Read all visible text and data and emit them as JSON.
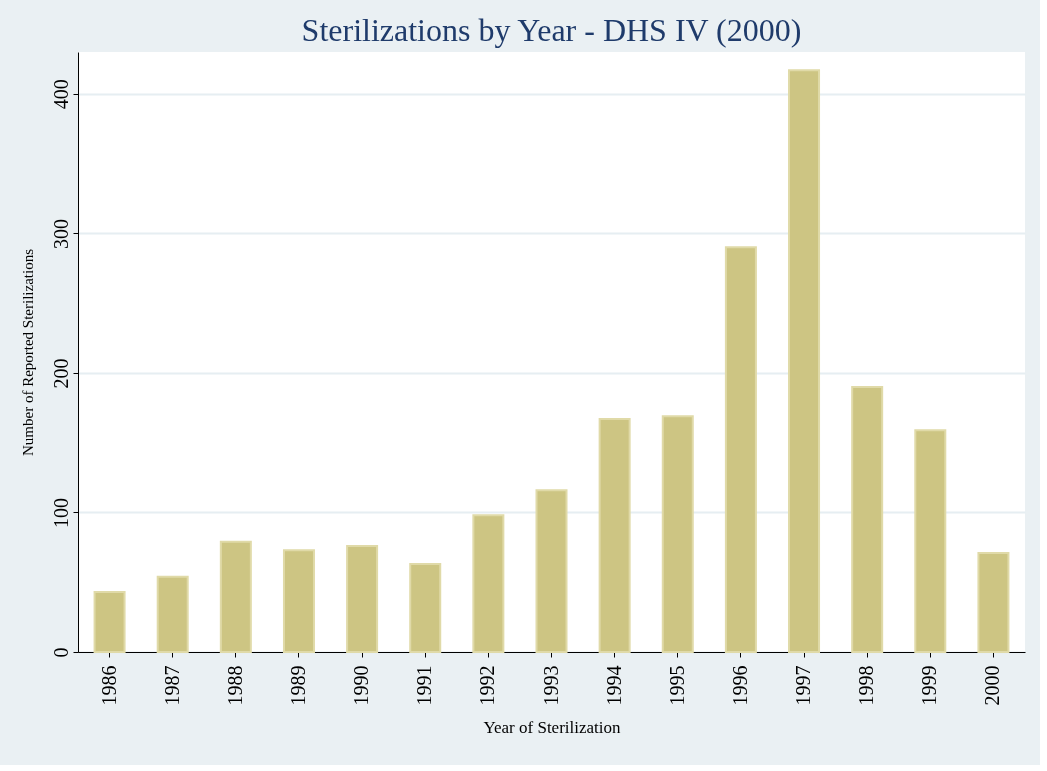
{
  "chart_data": {
    "type": "bar",
    "title": "Sterilizations by Year - DHS IV (2000)",
    "xlabel": "Year of Sterilization",
    "ylabel": "Number of Reported Sterilizations",
    "categories": [
      "1986",
      "1987",
      "1988",
      "1989",
      "1990",
      "1991",
      "1992",
      "1993",
      "1994",
      "1995",
      "1996",
      "1997",
      "1998",
      "1999",
      "2000"
    ],
    "values": [
      43,
      54,
      79,
      73,
      76,
      63,
      98,
      116,
      167,
      169,
      290,
      417,
      190,
      159,
      71
    ],
    "color": "#cdc583",
    "ylim": [
      0,
      430
    ],
    "yticks": [
      0,
      100,
      200,
      300,
      400
    ],
    "grid": "y"
  }
}
